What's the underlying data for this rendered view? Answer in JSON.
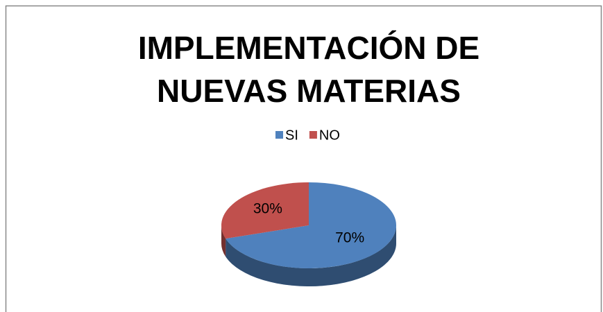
{
  "chart_data": {
    "type": "pie",
    "title": "IMPLEMENTACIÓN DE NUEVAS MATERIAS",
    "categories": [
      "SI",
      "NO"
    ],
    "values": [
      70,
      30
    ],
    "value_labels": [
      "70%",
      "30%"
    ],
    "colors": [
      "#4f81bd",
      "#c0504d"
    ],
    "legend": "top"
  }
}
